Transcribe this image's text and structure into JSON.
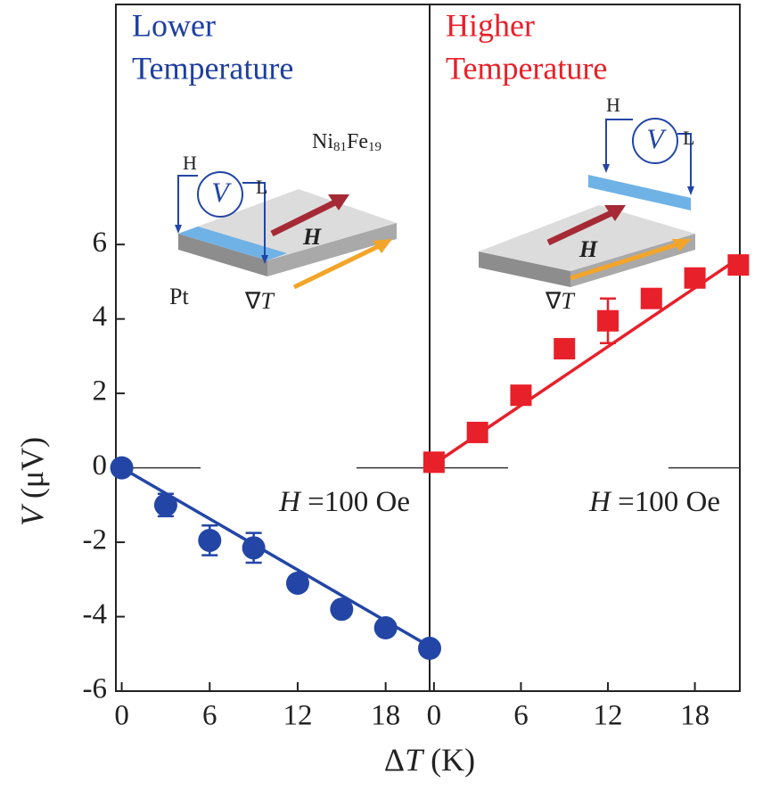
{
  "chart_data": [
    {
      "type": "scatter",
      "title": [
        "Lower",
        "Temperature"
      ],
      "title_color": "#1e3f9e",
      "ylabel": [
        "V",
        " (μV)"
      ],
      "xlabel": [
        "Δ",
        "T",
        " (K)"
      ],
      "x": [
        0,
        3,
        6,
        9,
        12,
        15,
        18,
        21
      ],
      "values": [
        0,
        -1.0,
        -1.95,
        -2.15,
        -3.1,
        -3.8,
        -4.3,
        -4.85
      ],
      "errors": [
        null,
        0.3,
        0.4,
        0.4,
        null,
        null,
        null,
        null
      ],
      "fit": {
        "x": [
          0,
          21
        ],
        "values": [
          0,
          -4.8
        ]
      },
      "marker": "circle",
      "color": "#2346a6",
      "xlim": [
        -0.4,
        21
      ],
      "xticks": [
        0,
        6,
        12,
        18
      ],
      "ylim": [
        -6,
        12.45
      ],
      "yticks": [
        -6,
        -4,
        -2,
        0,
        2,
        4,
        6
      ],
      "zero_line": 0,
      "annotation": [
        "H",
        " =100 Oe"
      ],
      "inset": {
        "labels": [
          "H",
          "V",
          "L",
          "Ni",
          "81",
          "Fe",
          "19",
          "H",
          "Pt",
          "∇",
          "T"
        ]
      }
    },
    {
      "type": "scatter",
      "title": [
        "Higher",
        "Temperature"
      ],
      "title_color": "#e8202a",
      "x": [
        0,
        3,
        6,
        9,
        12,
        15,
        18,
        21
      ],
      "values": [
        0.15,
        0.95,
        1.95,
        3.2,
        3.95,
        4.55,
        5.1,
        5.45
      ],
      "errors": [
        null,
        null,
        null,
        null,
        0.6,
        null,
        null,
        null
      ],
      "fit": {
        "x": [
          0,
          21.1
        ],
        "values": [
          0.1,
          5.65
        ]
      },
      "marker": "square",
      "color": "#e8202a",
      "xlim": [
        -0.3,
        21.1
      ],
      "xticks": [
        0,
        6,
        12,
        18
      ],
      "ylim": [
        -6,
        12.45
      ],
      "zero_line": 0,
      "annotation": [
        "H",
        " =100 Oe"
      ],
      "inset": {
        "labels": [
          "H",
          "V",
          "L",
          "H",
          "∇",
          "T"
        ]
      }
    }
  ]
}
